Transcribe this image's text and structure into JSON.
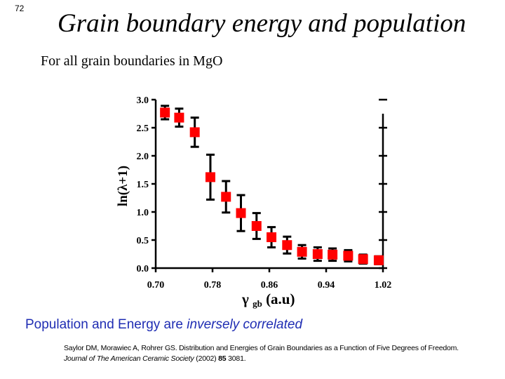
{
  "slide_number": "72",
  "title": "Grain boundary energy and population",
  "subtitle": "For all grain boundaries in MgO",
  "conclusion": {
    "part1": "Population and Energy are ",
    "emphasis": "inversely correlated"
  },
  "reference": {
    "authors": "Saylor DM, Morawiec A, Rohrer GS. Distribution and Energies of Grain Boundaries as a Function of Five Degrees of Freedom. ",
    "journal": "Journal of The American Ceramic Society",
    "year": " (2002) ",
    "volume": "85",
    "pages": " 3081."
  },
  "colors": {
    "marker": "#ff0000",
    "axis": "#000000",
    "conclusion_text": "#1f2db3"
  },
  "chart_data": {
    "type": "scatter",
    "ylabel": "ln(λ+1)",
    "xlabel_symbol": "γ",
    "xlabel_subscript": "gb",
    "xlabel_units": " (a.u)",
    "xlim": [
      0.7,
      1.02
    ],
    "ylim": [
      0.0,
      3.0
    ],
    "x_ticks": [
      0.7,
      0.78,
      0.86,
      0.94,
      1.02
    ],
    "x_tick_labels": [
      "0.70",
      "0.78",
      "0.86",
      "0.94",
      "1.02"
    ],
    "y_ticks": [
      0.0,
      0.5,
      1.0,
      1.5,
      2.0,
      2.5,
      3.0
    ],
    "y_tick_labels": [
      "0.0",
      "0.5",
      "1.0",
      "1.5",
      "2.0",
      "2.5",
      "3.0"
    ],
    "marker": "square",
    "grid": false,
    "series": [
      {
        "x": [
          0.713,
          0.733,
          0.755,
          0.777,
          0.799,
          0.82,
          0.842,
          0.863,
          0.885,
          0.906,
          0.928,
          0.949,
          0.971,
          0.992,
          1.014
        ],
        "y": [
          2.77,
          2.68,
          2.42,
          1.62,
          1.27,
          0.98,
          0.75,
          0.55,
          0.41,
          0.29,
          0.25,
          0.24,
          0.22,
          0.16,
          0.14
        ],
        "err_low": [
          0.12,
          0.16,
          0.26,
          0.4,
          0.28,
          0.32,
          0.23,
          0.18,
          0.15,
          0.12,
          0.12,
          0.11,
          0.1,
          0.08,
          0.07
        ],
        "err_high": [
          0.12,
          0.16,
          0.26,
          0.4,
          0.28,
          0.32,
          0.23,
          0.18,
          0.15,
          0.12,
          0.12,
          0.11,
          0.1,
          0.08,
          0.07
        ]
      }
    ]
  }
}
